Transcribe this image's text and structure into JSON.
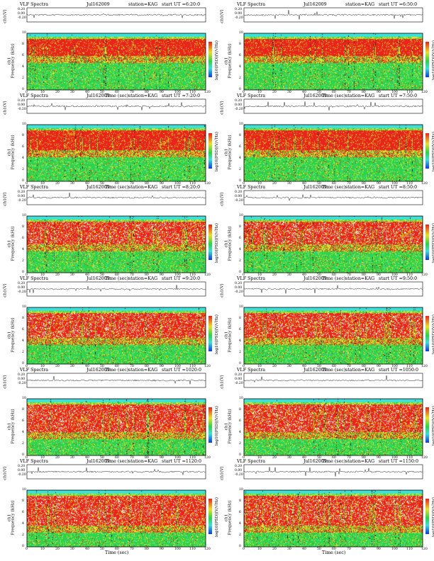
{
  "chart_data": [
    {
      "type": "heatmap",
      "header": {
        "title": "VLF Spectra",
        "date": "Jul162009",
        "station": "station=KAG",
        "start_ut": "start  UT =6:20:0"
      },
      "ts_ylabel": "ch1(V)",
      "ts_yticks": [
        "0.20",
        "0.00",
        "-0.20"
      ],
      "y_label": "Frequency  (kHz)",
      "y_ch": "ch1",
      "y_ticks": [
        "0",
        "2",
        "4",
        "6",
        "8",
        "10"
      ],
      "x_label": "Time (sec)",
      "x_ticks": [
        "0",
        "10",
        "20",
        "30",
        "40",
        "50",
        "60",
        "70",
        "80",
        "90",
        "100",
        "110",
        "120"
      ],
      "x_range": [
        0,
        120
      ],
      "y_range_khz": [
        0,
        10
      ],
      "colorbar_label": "log10(PSD)(V/√Hz)"
    },
    {
      "type": "heatmap",
      "header": {
        "title": "VLF Spectra",
        "date": "Jul162009",
        "station": "station=KAG",
        "start_ut": "start  UT =6:50:0"
      },
      "ts_ylabel": "ch1(V)",
      "ts_yticks": [
        "0.20",
        "0.00",
        "-0.20"
      ],
      "y_label": "Frequency  (kHz)",
      "y_ch": "ch1",
      "y_ticks": [
        "0",
        "2",
        "4",
        "6",
        "8",
        "10"
      ],
      "x_label": "Time (sec)",
      "x_ticks": [
        "0",
        "10",
        "20",
        "30",
        "40",
        "50",
        "60",
        "70",
        "80",
        "90",
        "100",
        "110",
        "120"
      ],
      "x_range": [
        0,
        120
      ],
      "y_range_khz": [
        0,
        10
      ],
      "colorbar_label": "log10(PSD)(V/√Hz)"
    },
    {
      "type": "heatmap",
      "header": {
        "title": "VLF Spectra",
        "date": "Jul162009",
        "station": "station=KAG",
        "start_ut": "start  UT =7:20:0"
      },
      "ts_ylabel": "ch1(V)",
      "ts_yticks": [
        "0.20",
        "0.00",
        "-0.20"
      ],
      "y_label": "Frequency  (kHz)",
      "y_ch": "ch1",
      "y_ticks": [
        "0",
        "2",
        "4",
        "6",
        "8",
        "10"
      ],
      "x_label": "Time (sec)",
      "x_ticks": [
        "0",
        "10",
        "20",
        "30",
        "40",
        "50",
        "60",
        "70",
        "80",
        "90",
        "100",
        "110",
        "120"
      ],
      "x_range": [
        0,
        120
      ],
      "y_range_khz": [
        0,
        10
      ],
      "colorbar_label": "log10(PSD)(V/√Hz)"
    },
    {
      "type": "heatmap",
      "header": {
        "title": "VLF Spectra",
        "date": "Jul162009",
        "station": "station=KAG",
        "start_ut": "start  UT =7:50:0"
      },
      "ts_ylabel": "ch1(V)",
      "ts_yticks": [
        "0.20",
        "0.00",
        "-0.20"
      ],
      "y_label": "Frequency  (kHz)",
      "y_ch": "ch1",
      "y_ticks": [
        "0",
        "2",
        "4",
        "6",
        "8",
        "10"
      ],
      "x_label": "Time (sec)",
      "x_ticks": [
        "0",
        "10",
        "20",
        "30",
        "40",
        "50",
        "60",
        "70",
        "80",
        "90",
        "100",
        "110",
        "120"
      ],
      "x_range": [
        0,
        120
      ],
      "y_range_khz": [
        0,
        10
      ],
      "colorbar_label": "log10(PSD)(V/√Hz)"
    },
    {
      "type": "heatmap",
      "header": {
        "title": "VLF Spectra",
        "date": "Jul162009",
        "station": "station=KAG",
        "start_ut": "start  UT =8:20:0"
      },
      "ts_ylabel": "ch1(V)",
      "ts_yticks": [
        "0.20",
        "0.00",
        "-0.20"
      ],
      "y_label": "Frequency  (kHz)",
      "y_ch": "ch1",
      "y_ticks": [
        "0",
        "2",
        "4",
        "6",
        "8",
        "10"
      ],
      "x_label": "Time (sec)",
      "x_ticks": [
        "0",
        "10",
        "20",
        "30",
        "40",
        "50",
        "60",
        "70",
        "80",
        "90",
        "100",
        "110",
        "120"
      ],
      "x_range": [
        0,
        120
      ],
      "y_range_khz": [
        0,
        10
      ],
      "colorbar_label": "log10(PSD)(V/√Hz)"
    },
    {
      "type": "heatmap",
      "header": {
        "title": "VLF Spectra",
        "date": "Jul162009",
        "station": "station=KAG",
        "start_ut": "start  UT =8:50:0"
      },
      "ts_ylabel": "ch1(V)",
      "ts_yticks": [
        "0.20",
        "0.00",
        "-0.20"
      ],
      "y_label": "Frequency  (kHz)",
      "y_ch": "ch1",
      "y_ticks": [
        "0",
        "2",
        "4",
        "6",
        "8",
        "10"
      ],
      "x_label": "Time (sec)",
      "x_ticks": [
        "0",
        "10",
        "20",
        "30",
        "40",
        "50",
        "60",
        "70",
        "80",
        "90",
        "100",
        "110",
        "120"
      ],
      "x_range": [
        0,
        120
      ],
      "y_range_khz": [
        0,
        10
      ],
      "colorbar_label": "log10(PSD)(V/√Hz)"
    },
    {
      "type": "heatmap",
      "header": {
        "title": "VLF Spectra",
        "date": "Jul162009",
        "station": "station=KAG",
        "start_ut": "start  UT =9:20:0"
      },
      "ts_ylabel": "ch1(V)",
      "ts_yticks": [
        "0.20",
        "0.00",
        "-0.20"
      ],
      "y_label": "Frequency  (kHz)",
      "y_ch": "ch1",
      "y_ticks": [
        "0",
        "2",
        "4",
        "6",
        "8",
        "10"
      ],
      "x_label": "Time (sec)",
      "x_ticks": [
        "0",
        "10",
        "20",
        "30",
        "40",
        "50",
        "60",
        "70",
        "80",
        "90",
        "100",
        "110",
        "120"
      ],
      "x_range": [
        0,
        120
      ],
      "y_range_khz": [
        0,
        10
      ],
      "colorbar_label": "log10(PSD)(V/√Hz)"
    },
    {
      "type": "heatmap",
      "header": {
        "title": "VLF Spectra",
        "date": "Jul162009",
        "station": "station=KAG",
        "start_ut": "start  UT =9:50:0"
      },
      "ts_ylabel": "ch1(V)",
      "ts_yticks": [
        "0.20",
        "0.00",
        "-0.20"
      ],
      "y_label": "Frequency  (kHz)",
      "y_ch": "ch1",
      "y_ticks": [
        "0",
        "2",
        "4",
        "6",
        "8",
        "10"
      ],
      "x_label": "Time (sec)",
      "x_ticks": [
        "0",
        "10",
        "20",
        "30",
        "40",
        "50",
        "60",
        "70",
        "80",
        "90",
        "100",
        "110",
        "120"
      ],
      "x_range": [
        0,
        120
      ],
      "y_range_khz": [
        0,
        10
      ],
      "colorbar_label": "log10(PSD)(V/√Hz)"
    },
    {
      "type": "heatmap",
      "header": {
        "title": "VLF Spectra",
        "date": "Jul162009",
        "station": "station=KAG",
        "start_ut": "start  UT =1020:0"
      },
      "ts_ylabel": "ch1(V)",
      "ts_yticks": [
        "0.20",
        "0.00",
        "-0.20"
      ],
      "y_label": "Frequency  (kHz)",
      "y_ch": "ch1",
      "y_ticks": [
        "0",
        "2",
        "4",
        "6",
        "8",
        "10"
      ],
      "x_label": "Time (sec)",
      "x_ticks": [
        "0",
        "10",
        "20",
        "30",
        "40",
        "50",
        "60",
        "70",
        "80",
        "90",
        "100",
        "110",
        "120"
      ],
      "x_range": [
        0,
        120
      ],
      "y_range_khz": [
        0,
        10
      ],
      "colorbar_label": "log10(PSD)(V/√Hz)"
    },
    {
      "type": "heatmap",
      "header": {
        "title": "VLF Spectra",
        "date": "Jul162009",
        "station": "station=KAG",
        "start_ut": "start  UT =1050:0"
      },
      "ts_ylabel": "ch1(V)",
      "ts_yticks": [
        "0.20",
        "0.00",
        "-0.20"
      ],
      "y_label": "Frequency  (kHz)",
      "y_ch": "ch1",
      "y_ticks": [
        "0",
        "2",
        "4",
        "6",
        "8",
        "10"
      ],
      "x_label": "Time (sec)",
      "x_ticks": [
        "0",
        "10",
        "20",
        "30",
        "40",
        "50",
        "60",
        "70",
        "80",
        "90",
        "100",
        "110",
        "120"
      ],
      "x_range": [
        0,
        120
      ],
      "y_range_khz": [
        0,
        10
      ],
      "colorbar_label": "log10(PSD)(V/√Hz)"
    },
    {
      "type": "heatmap",
      "header": {
        "title": "VLF Spectra",
        "date": "Jul162009",
        "station": "station=KAG",
        "start_ut": "start  UT =1120:0"
      },
      "ts_ylabel": "ch1(V)",
      "ts_yticks": [
        "0.20",
        "0.00",
        "-0.20"
      ],
      "y_label": "Frequency  (kHz)",
      "y_ch": "ch1",
      "y_ticks": [
        "0",
        "2",
        "4",
        "6",
        "8",
        "10"
      ],
      "x_label": "Time (sec)",
      "x_ticks": [
        "0",
        "10",
        "20",
        "30",
        "40",
        "50",
        "60",
        "70",
        "80",
        "90",
        "100",
        "110",
        "120"
      ],
      "x_range": [
        0,
        120
      ],
      "y_range_khz": [
        0,
        10
      ],
      "colorbar_label": "log10(PSD)(V/√Hz)"
    },
    {
      "type": "heatmap",
      "header": {
        "title": "VLF Spectra",
        "date": "Jul162009",
        "station": "station=KAG",
        "start_ut": "start  UT =1150:0"
      },
      "ts_ylabel": "ch1(V)",
      "ts_yticks": [
        "0.20",
        "0.00",
        "-0.20"
      ],
      "y_label": "Frequency  (kHz)",
      "y_ch": "ch1",
      "y_ticks": [
        "0",
        "2",
        "4",
        "6",
        "8",
        "10"
      ],
      "x_label": "Time (sec)",
      "x_ticks": [
        "0",
        "10",
        "20",
        "30",
        "40",
        "50",
        "60",
        "70",
        "80",
        "90",
        "100",
        "110",
        "120"
      ],
      "x_range": [
        0,
        120
      ],
      "y_range_khz": [
        0,
        10
      ],
      "colorbar_label": "log10(PSD)(V/√Hz)"
    }
  ],
  "colors": {
    "noise_cyan": "#3fe0d8",
    "green": "#2dd34a",
    "yellow": "#e8e22a",
    "red": "#e8241c",
    "white": "#ffffff",
    "dark": "#1a1a1a",
    "blue": "#1038d8"
  }
}
